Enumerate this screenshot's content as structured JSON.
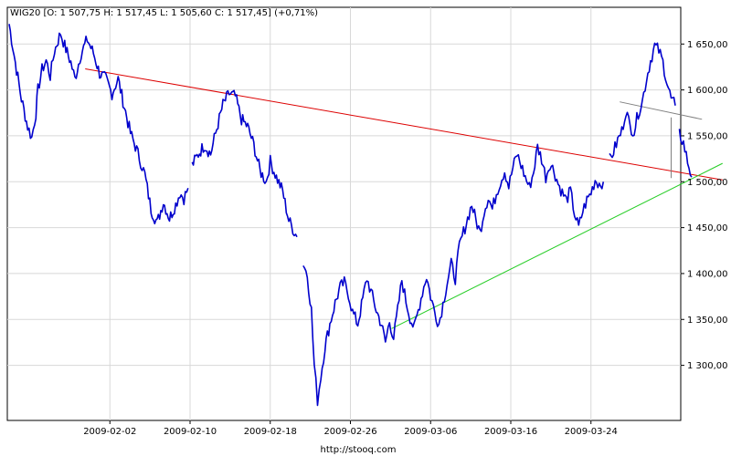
{
  "chart_data": {
    "type": "candlestick",
    "title": "WIG20 [O: 1 507,75  H: 1 517,45  L: 1 505,60  C: 1 517,45] (+0,71%)",
    "source": "http://stooq.com",
    "xlabel": "",
    "ylabel": "",
    "ylim": [
      1240,
      1690
    ],
    "y_ticks": [
      1300,
      1350,
      1400,
      1450,
      1500,
      1550,
      1600,
      1650
    ],
    "y_tick_labels": [
      "1 300,00",
      "1 350,00",
      "1 400,00",
      "1 450,00",
      "1 500,00",
      "1 550,00",
      "1 600,00",
      "1 650,00"
    ],
    "x_ticks": [
      "2009-02-02",
      "2009-02-10",
      "2009-02-18",
      "2009-02-26",
      "2009-03-06",
      "2009-03-16",
      "2009-03-24"
    ],
    "grid": true,
    "colors": {
      "price": "#0000cc",
      "resistance_line": "#dd0000",
      "support_line": "#22cc22",
      "channel_line": "#808080",
      "grid": "#d8d8d8"
    },
    "series": [
      {
        "name": "WIG20",
        "segments": [
          [
            [
              0,
              1672
            ],
            [
              1.5,
              1630
            ],
            [
              3,
              1590
            ],
            [
              4.5,
              1560
            ],
            [
              5.5,
              1548
            ],
            [
              6.5,
              1575
            ],
            [
              7,
              1600
            ],
            [
              8,
              1622
            ],
            [
              9,
              1632
            ],
            [
              10,
              1615
            ],
            [
              11,
              1642
            ],
            [
              12.5,
              1662
            ],
            [
              13.5,
              1648
            ],
            [
              15,
              1630
            ],
            [
              16,
              1612
            ],
            [
              17.5,
              1640
            ],
            [
              19,
              1655
            ],
            [
              20.5,
              1640
            ],
            [
              22,
              1618
            ],
            [
              23.5,
              1612
            ],
            [
              25,
              1596
            ],
            [
              26.5,
              1612
            ],
            [
              28,
              1582
            ],
            [
              29.5,
              1553
            ],
            [
              31,
              1535
            ],
            [
              33,
              1508
            ],
            [
              34.5,
              1470
            ],
            [
              36,
              1455
            ],
            [
              37.5,
              1478
            ],
            [
              39,
              1460
            ],
            [
              40.5,
              1475
            ],
            [
              41.5,
              1488
            ],
            [
              42.5,
              1482
            ],
            [
              43.5,
              1493
            ]
          ],
          [
            [
              44.5,
              1518
            ],
            [
              46,
              1530
            ],
            [
              47.5,
              1540
            ],
            [
              49,
              1530
            ],
            [
              50.5,
              1558
            ],
            [
              52,
              1584
            ],
            [
              53.5,
              1596
            ],
            [
              55,
              1593
            ],
            [
              56.5,
              1568
            ],
            [
              58,
              1560
            ],
            [
              59.5,
              1540
            ],
            [
              61,
              1512
            ],
            [
              62.5,
              1500
            ],
            [
              63.5,
              1522
            ],
            [
              65,
              1505
            ],
            [
              66.5,
              1490
            ],
            [
              68,
              1458
            ],
            [
              70,
              1440
            ]
          ],
          [
            [
              71.5,
              1412
            ],
            [
              72.5,
              1398
            ],
            [
              73.5,
              1360
            ],
            [
              74.2,
              1300
            ],
            [
              75,
              1262
            ],
            [
              75.8,
              1288
            ],
            [
              76.8,
              1320
            ],
            [
              78,
              1345
            ],
            [
              79.3,
              1368
            ],
            [
              80.5,
              1385
            ],
            [
              81.5,
              1390
            ],
            [
              82.5,
              1378
            ],
            [
              83.5,
              1358
            ],
            [
              84.8,
              1345
            ],
            [
              86,
              1372
            ],
            [
              87,
              1395
            ],
            [
              88,
              1380
            ],
            [
              89.3,
              1360
            ],
            [
              90.5,
              1345
            ],
            [
              91.5,
              1325
            ],
            [
              92.5,
              1348
            ],
            [
              93.5,
              1330
            ],
            [
              94.5,
              1360
            ],
            [
              95.5,
              1393
            ],
            [
              96.5,
              1370
            ],
            [
              97.5,
              1352
            ],
            [
              98.5,
              1340
            ],
            [
              99.5,
              1360
            ],
            [
              100.5,
              1380
            ],
            [
              101.5,
              1397
            ],
            [
              102.5,
              1375
            ],
            [
              103.5,
              1358
            ],
            [
              104.5,
              1345
            ],
            [
              105.5,
              1367
            ],
            [
              106.5,
              1390
            ],
            [
              107.5,
              1410
            ],
            [
              108.5,
              1395
            ],
            [
              109.5,
              1430
            ],
            [
              110.5,
              1445
            ],
            [
              111.5,
              1460
            ],
            [
              112.5,
              1475
            ],
            [
              113.5,
              1458
            ],
            [
              114.5,
              1445
            ],
            [
              115.5,
              1468
            ],
            [
              116.5,
              1483
            ],
            [
              117.5,
              1470
            ],
            [
              118.5,
              1488
            ],
            [
              119.5,
              1500
            ],
            [
              120.5,
              1512
            ],
            [
              121.5,
              1495
            ],
            [
              122.5,
              1515
            ],
            [
              123.5,
              1530
            ],
            [
              124.5,
              1518
            ],
            [
              125.5,
              1505
            ],
            [
              126.5,
              1494
            ],
            [
              127.5,
              1510
            ],
            [
              128.5,
              1538
            ],
            [
              129.5,
              1525
            ],
            [
              130.5,
              1505
            ],
            [
              131.5,
              1520
            ],
            [
              132.5,
              1512
            ],
            [
              133.5,
              1498
            ],
            [
              134.5,
              1488
            ],
            [
              135.5,
              1480
            ],
            [
              136.5,
              1490
            ],
            [
              137.5,
              1465
            ],
            [
              138.5,
              1450
            ],
            [
              139.5,
              1468
            ],
            [
              140.5,
              1480
            ],
            [
              141.5,
              1488
            ],
            [
              142.5,
              1502
            ],
            [
              143.5,
              1498
            ],
            [
              144.5,
              1500
            ]
          ],
          [
            [
              146,
              1524
            ],
            [
              147,
              1533
            ],
            [
              148,
              1545
            ],
            [
              149,
              1555
            ],
            [
              150,
              1578
            ],
            [
              151,
              1560
            ],
            [
              152,
              1555
            ],
            [
              153,
              1575
            ],
            [
              154,
              1588
            ],
            [
              155,
              1612
            ],
            [
              156,
              1632
            ],
            [
              157,
              1648
            ],
            [
              158,
              1643
            ],
            [
              159,
              1630
            ],
            [
              160,
              1608
            ],
            [
              161,
              1590
            ],
            [
              162,
              1583
            ]
          ],
          [
            [
              163,
              1552
            ],
            [
              164,
              1542
            ],
            [
              165,
              1522
            ],
            [
              166,
              1505
            ]
          ]
        ]
      }
    ],
    "trendlines": [
      {
        "name": "resistance",
        "x": [
          18.5,
          173.5
        ],
        "y": [
          1623,
          1502
        ]
      },
      {
        "name": "support",
        "x": [
          93,
          173.5
        ],
        "y": [
          1340,
          1520
        ]
      },
      {
        "name": "channel",
        "x": [
          148.5,
          168.5
        ],
        "y": [
          1587,
          1568
        ]
      }
    ]
  }
}
